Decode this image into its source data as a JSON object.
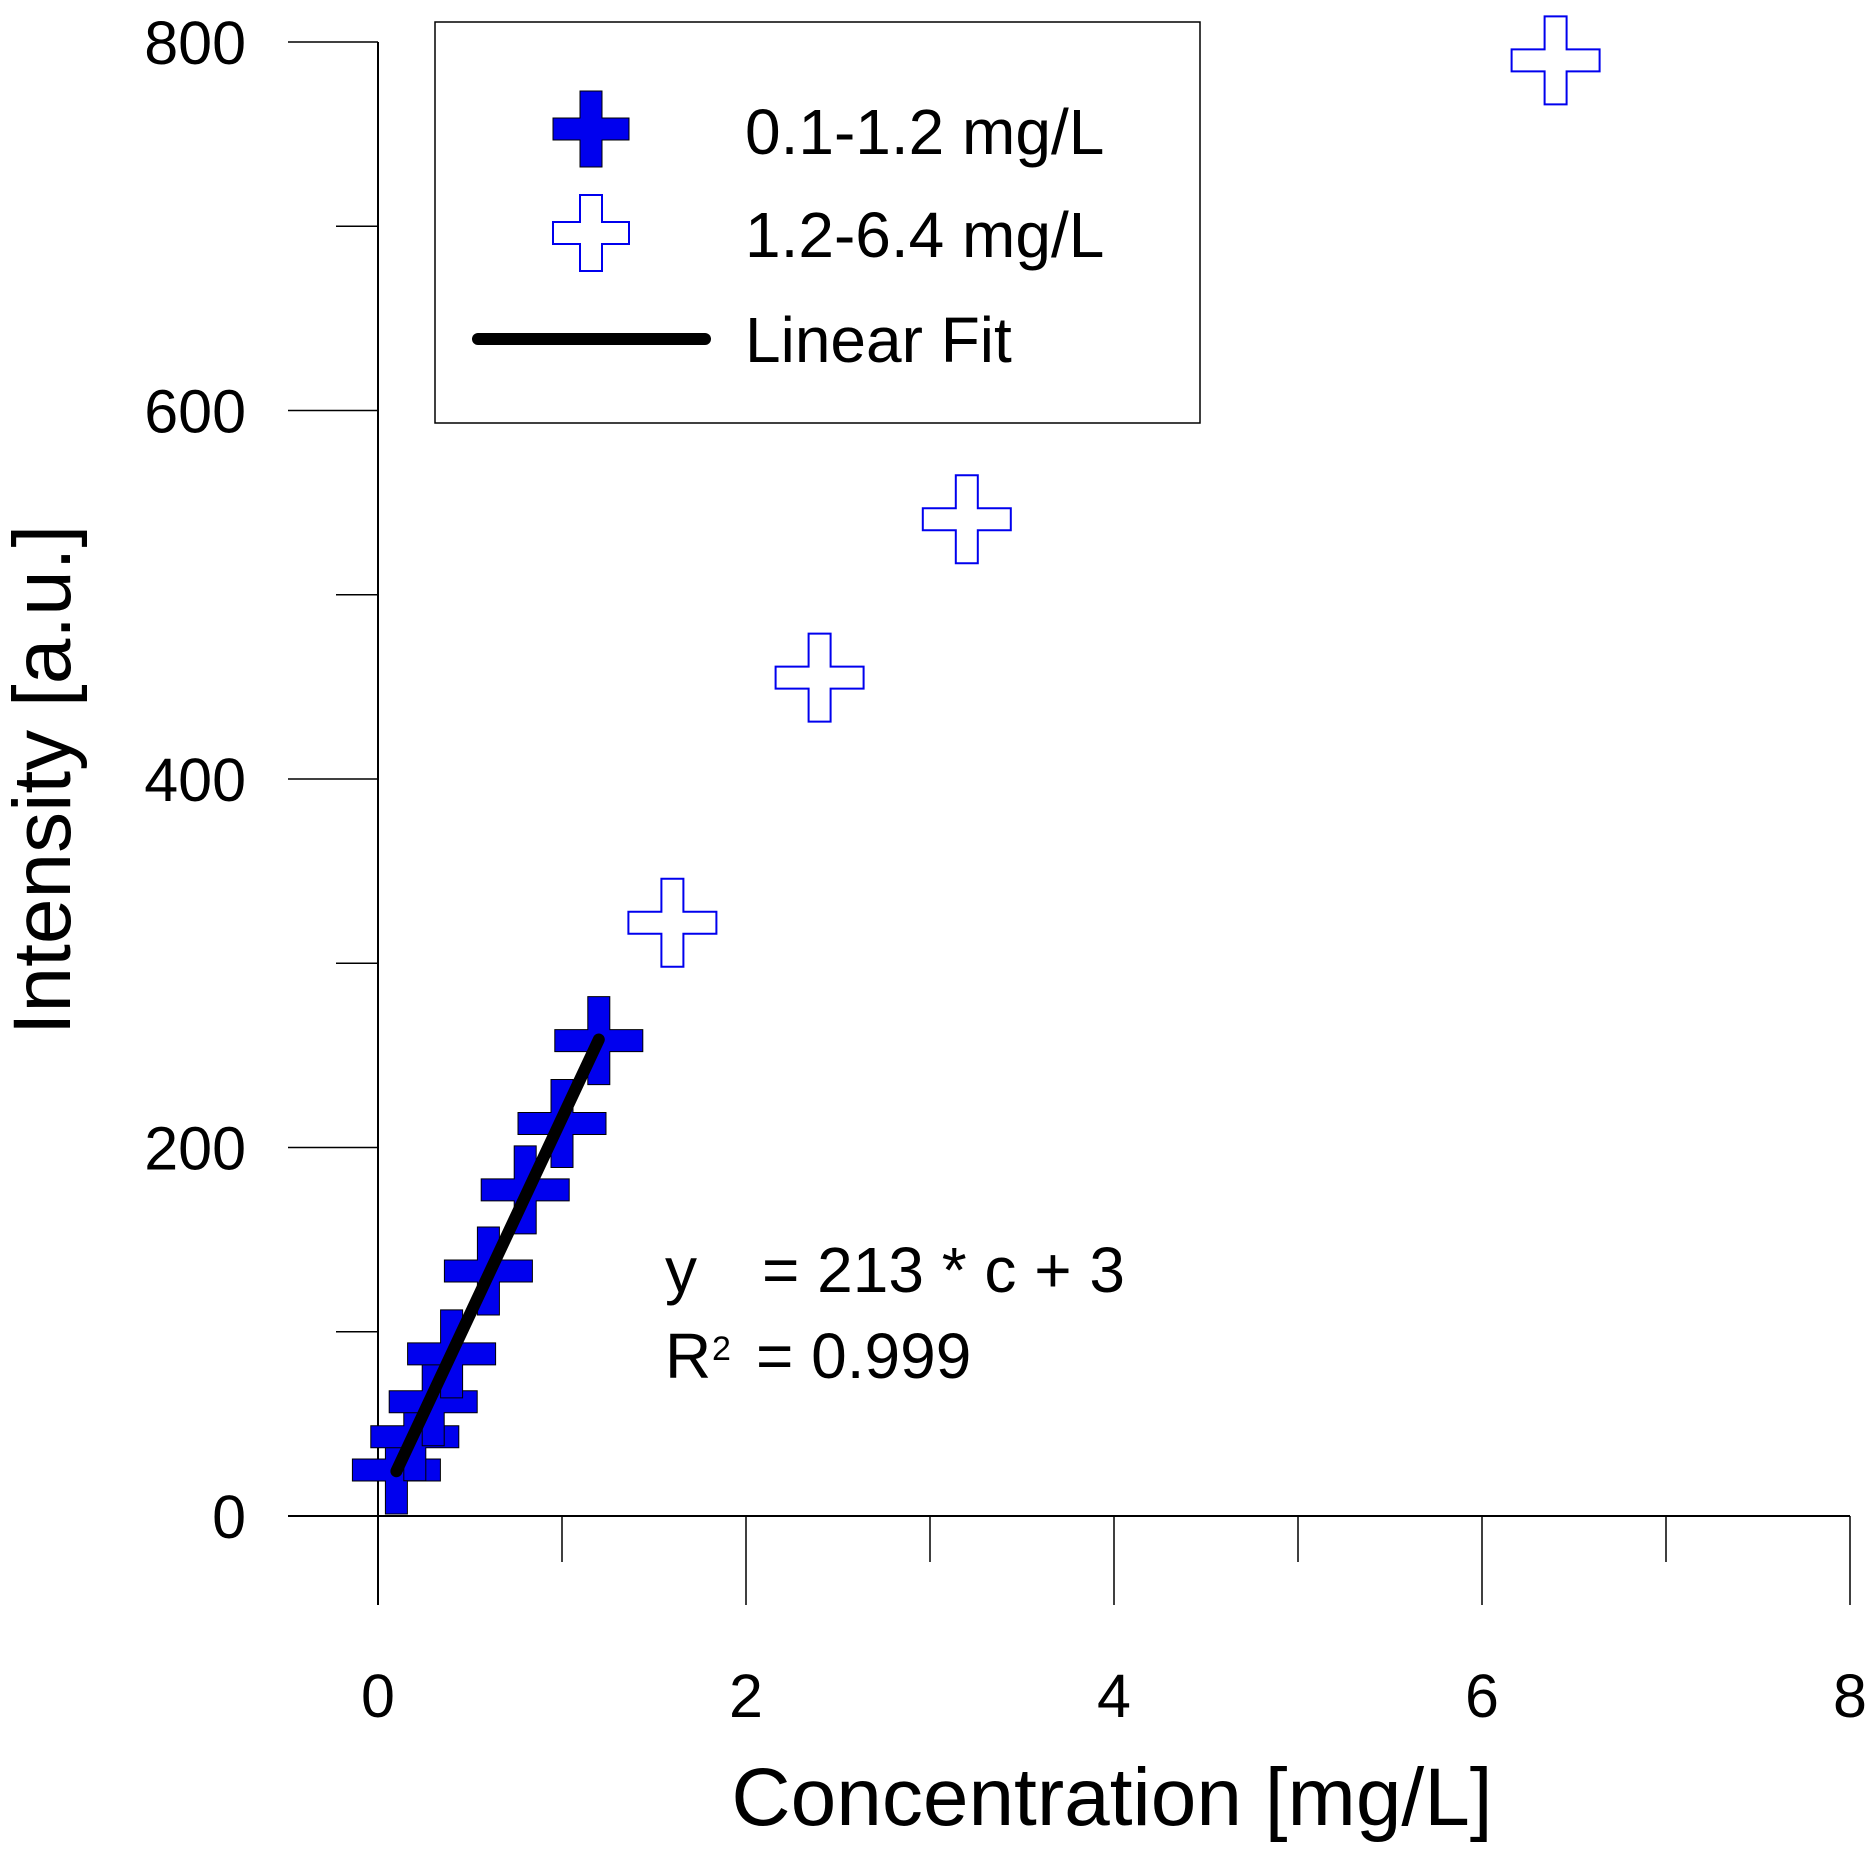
{
  "chart_data": {
    "type": "scatter",
    "title": "",
    "xlabel": "Concentration [mg/L]",
    "ylabel": "Intensity [a.u.]",
    "xlim": [
      0,
      8
    ],
    "ylim": [
      0,
      800
    ],
    "x_ticks": [
      "0",
      "2",
      "4",
      "6",
      "8"
    ],
    "y_ticks": [
      "0",
      "200",
      "400",
      "600",
      "800"
    ],
    "grid": false,
    "legend_position": "top-center",
    "colors": {
      "series": "#0000ee",
      "fit": "#000000"
    },
    "series": [
      {
        "name": "0.1-1.2 mg/L",
        "marker": "filled-cross",
        "x": [
          0.1,
          0.2,
          0.3,
          0.4,
          0.6,
          0.8,
          1.0,
          1.2
        ],
        "y": [
          25,
          43,
          62,
          88,
          133,
          177,
          213,
          258
        ]
      },
      {
        "name": "1.2-6.4 mg/L",
        "marker": "open-cross",
        "x": [
          1.6,
          2.4,
          3.2,
          6.4
        ],
        "y": [
          322,
          455,
          541,
          790
        ]
      },
      {
        "name": "Linear Fit",
        "marker": "line",
        "x": [
          0.1,
          1.2
        ],
        "y": [
          24.3,
          258.6
        ]
      }
    ],
    "annotations": {
      "eq_y": "y",
      "eq_rhs": "= 213 * c + 3",
      "r2_label": "R",
      "r2_sup": "2",
      "r2_value": "= 0.999"
    }
  }
}
